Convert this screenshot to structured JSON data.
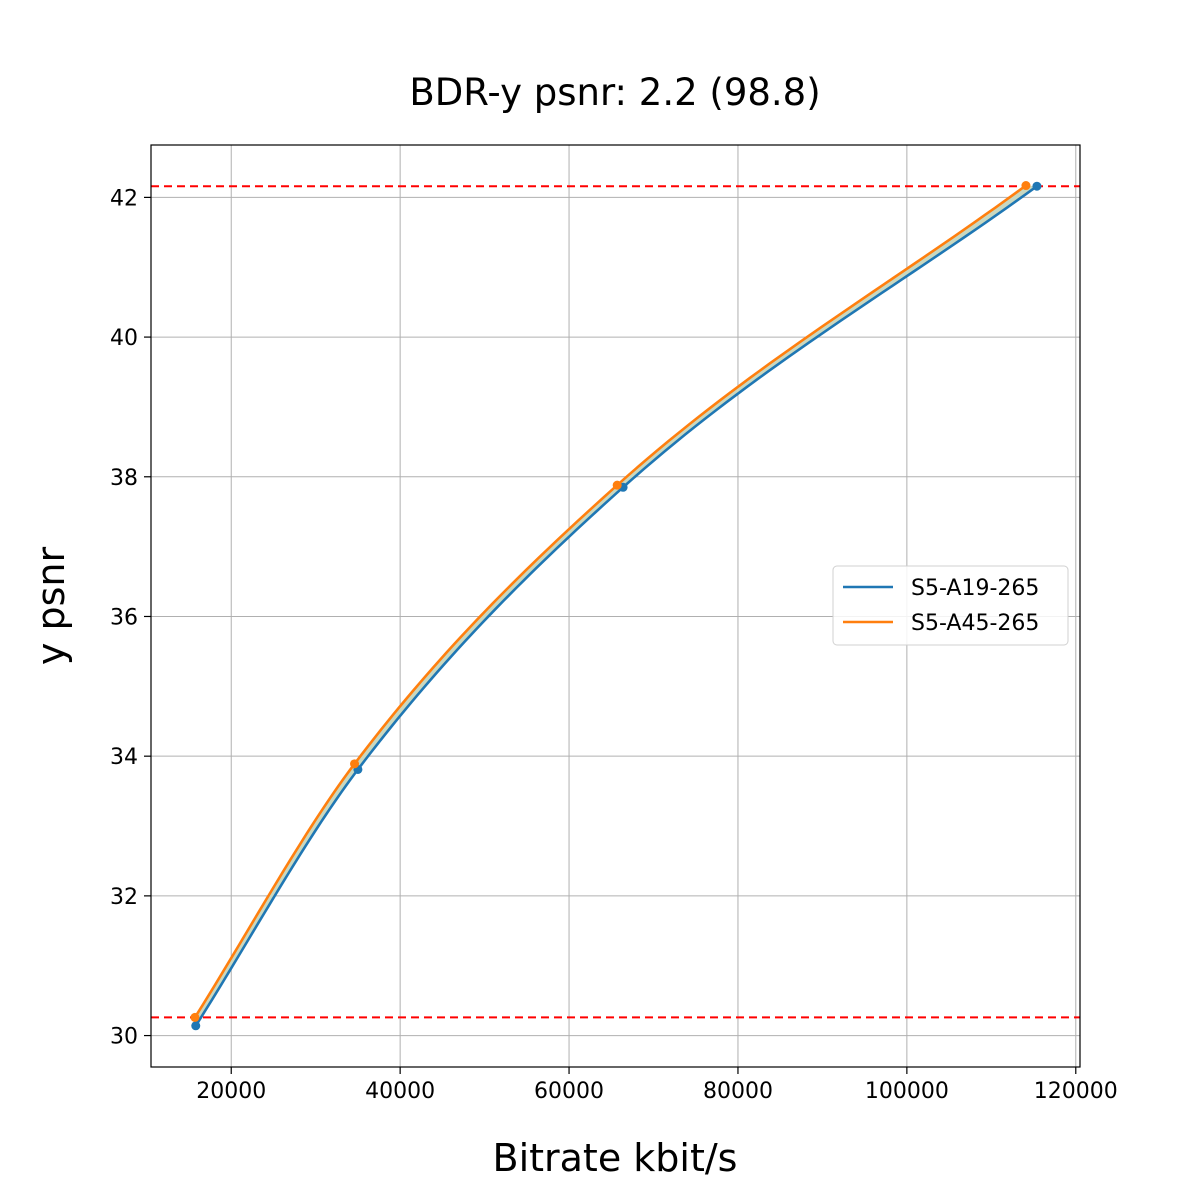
{
  "chart_data": {
    "type": "line",
    "title": "BDR-y psnr: 2.2 (98.8)",
    "xlabel": "Bitrate kbit/s",
    "ylabel": "y psnr",
    "xlim": [
      10500,
      120500
    ],
    "ylim": [
      29.55,
      42.75
    ],
    "xticks": [
      20000,
      40000,
      60000,
      80000,
      100000,
      120000
    ],
    "yticks": [
      30,
      32,
      34,
      36,
      38,
      40,
      42
    ],
    "grid": true,
    "legend_position": "center-right",
    "series": [
      {
        "name": "S5-A19-265",
        "color": "#1f77b4",
        "x": [
          15800,
          35000,
          66400,
          115400
        ],
        "y": [
          30.14,
          33.81,
          37.85,
          42.16
        ]
      },
      {
        "name": "S5-A45-265",
        "color": "#ff7f0e",
        "x": [
          15700,
          34600,
          65700,
          114100
        ],
        "y": [
          30.26,
          33.89,
          37.88,
          42.17
        ]
      }
    ],
    "reference_lines": [
      {
        "y": 42.16,
        "color": "#ff0000",
        "style": "dashed"
      },
      {
        "y": 30.26,
        "color": "#ff0000",
        "style": "dashed"
      }
    ],
    "fill_between_color": "#c8d8c0"
  }
}
